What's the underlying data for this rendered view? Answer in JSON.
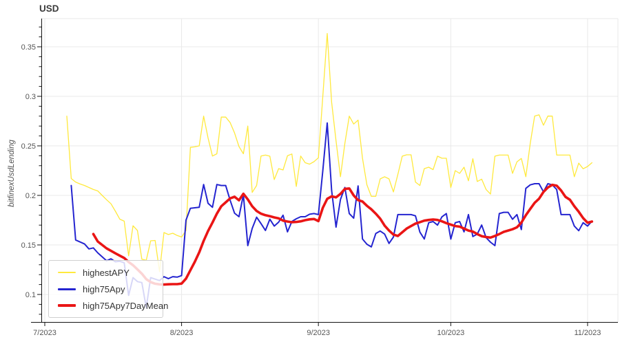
{
  "title": "USD",
  "legend": {
    "entries": [
      {
        "label": "highestAPY",
        "color": "#ffe93c"
      },
      {
        "label": "high75Apy",
        "color": "#2424d0"
      },
      {
        "label": "high75Apy7DayMean",
        "color": "#ea1515"
      }
    ]
  },
  "chart_data": {
    "type": "line",
    "title": "USD",
    "xlabel": "",
    "ylabel": "bitfinexUsdLending",
    "x_unit": "day",
    "x_start_date": "2023-07-06",
    "x_tick_labels": [
      "7/2023",
      "8/2023",
      "9/2023",
      "10/2023",
      "11/2023"
    ],
    "y_ticks": [
      0.1,
      0.15,
      0.2,
      0.25,
      0.3,
      0.35
    ],
    "y_tick_labels": [
      "0.1",
      "0.15",
      "0.2",
      "0.25",
      "0.3",
      "0.35"
    ],
    "ylim": [
      0.072,
      0.379
    ],
    "grid": true,
    "legend_position": "lower left",
    "series": [
      {
        "name": "highestAPY",
        "color": "#ffe93c",
        "width": 1.3,
        "values": [
          0.28,
          0.217,
          0.2135,
          0.2115,
          0.21,
          0.208,
          0.206,
          0.2045,
          0.2,
          0.1956,
          0.1915,
          0.184,
          0.176,
          0.174,
          0.139,
          0.1694,
          0.1646,
          0.1356,
          0.1345,
          0.1542,
          0.1545,
          0.123,
          0.1625,
          0.1605,
          0.1618,
          0.1595,
          0.158,
          0.1646,
          0.2485,
          0.249,
          0.25,
          0.28,
          0.258,
          0.2397,
          0.242,
          0.279,
          0.279,
          0.2735,
          0.263,
          0.2493,
          0.242,
          0.27,
          0.203,
          0.21,
          0.2397,
          0.2407,
          0.2396,
          0.216,
          0.227,
          0.2257,
          0.24,
          0.2418,
          0.209,
          0.2397,
          0.233,
          0.2315,
          0.234,
          0.238,
          0.3,
          0.3634,
          0.294,
          0.255,
          0.2188,
          0.2524,
          0.28,
          0.272,
          0.276,
          0.2375,
          0.2107,
          0.199,
          0.199,
          0.2167,
          0.2188,
          0.2167,
          0.2035,
          0.2211,
          0.2396,
          0.241,
          0.241,
          0.2135,
          0.21,
          0.227,
          0.2285,
          0.226,
          0.2396,
          0.2375,
          0.2375,
          0.208,
          0.225,
          0.2222,
          0.2285,
          0.2147,
          0.237,
          0.214,
          0.2164,
          0.206,
          0.2013,
          0.2396,
          0.2407,
          0.2407,
          0.2407,
          0.2222,
          0.2338,
          0.2373,
          0.2188,
          0.2524,
          0.2801,
          0.2813,
          0.2708,
          0.2801,
          0.28,
          0.2407,
          0.2407,
          0.2407,
          0.2407,
          0.2188,
          0.2326,
          0.2269,
          0.2292,
          0.233
        ]
      },
      {
        "name": "high75Apy",
        "color": "#2424d0",
        "width": 2,
        "values": [
          null,
          0.21,
          0.155,
          0.153,
          0.151,
          0.146,
          0.147,
          0.142,
          0.138,
          0.134,
          0.136,
          0.133,
          0.1335,
          0.132,
          0.099,
          0.117,
          0.113,
          0.112,
          0.0868,
          0.117,
          0.1155,
          0.114,
          0.118,
          0.116,
          0.118,
          0.1175,
          0.119,
          0.175,
          0.187,
          0.1875,
          0.188,
          0.211,
          0.192,
          0.188,
          0.211,
          0.21,
          0.21,
          0.195,
          0.182,
          0.1785,
          0.2007,
          0.1493,
          0.1667,
          0.178,
          0.1715,
          0.1646,
          0.176,
          0.169,
          0.173,
          0.18,
          0.1632,
          0.1737,
          0.1764,
          0.1785,
          0.1785,
          0.181,
          0.1817,
          0.1806,
          0.225,
          0.2731,
          0.205,
          0.168,
          0.1958,
          0.208,
          0.1817,
          0.177,
          0.2096,
          0.156,
          0.1507,
          0.148,
          0.1615,
          0.164,
          0.161,
          0.1515,
          0.158,
          0.1806,
          0.1806,
          0.1806,
          0.1806,
          0.1794,
          0.163,
          0.156,
          0.1724,
          0.1736,
          0.17,
          0.1783,
          0.1817,
          0.1559,
          0.1724,
          0.1736,
          0.1632,
          0.1806,
          0.1585,
          0.1609,
          0.1701,
          0.1574,
          0.1528,
          0.1493,
          0.1817,
          0.1829,
          0.1829,
          0.1759,
          0.1806,
          0.1655,
          0.2071,
          0.2106,
          0.2118,
          0.2118,
          0.2037,
          0.2118,
          0.2106,
          0.206,
          0.1806,
          0.1806,
          0.1806,
          0.169,
          0.1644,
          0.1724,
          0.169,
          0.174
        ]
      },
      {
        "name": "high75Apy7DayMean",
        "color": "#ea1515",
        "width": 3.6,
        "values": [
          null,
          null,
          null,
          null,
          null,
          null,
          0.161,
          0.1535,
          0.15,
          0.1465,
          0.144,
          0.1415,
          0.1392,
          0.1368,
          0.1328,
          0.1295,
          0.1253,
          0.121,
          0.1155,
          0.1125,
          0.1108,
          0.1102,
          0.11,
          0.1103,
          0.1104,
          0.1104,
          0.111,
          0.116,
          0.1245,
          0.133,
          0.1425,
          0.154,
          0.164,
          0.1725,
          0.1815,
          0.189,
          0.193,
          0.197,
          0.1986,
          0.1951,
          0.2017,
          0.196,
          0.189,
          0.1843,
          0.1815,
          0.18,
          0.179,
          0.1778,
          0.1768,
          0.1745,
          0.1736,
          0.1729,
          0.1732,
          0.1738,
          0.175,
          0.1758,
          0.1762,
          0.174,
          0.1875,
          0.1965,
          0.199,
          0.198,
          0.2015,
          0.2065,
          0.207,
          0.2,
          0.1952,
          0.1938,
          0.1895,
          0.186,
          0.1815,
          0.1765,
          0.1695,
          0.1645,
          0.1605,
          0.159,
          0.1628,
          0.1665,
          0.169,
          0.1715,
          0.173,
          0.1745,
          0.1752,
          0.1757,
          0.1752,
          0.1738,
          0.172,
          0.1705,
          0.169,
          0.1685,
          0.1665,
          0.1645,
          0.1635,
          0.161,
          0.1588,
          0.158,
          0.1574,
          0.159,
          0.161,
          0.1632,
          0.1645,
          0.1658,
          0.1678,
          0.1725,
          0.18,
          0.1863,
          0.1925,
          0.1967,
          0.2035,
          0.208,
          0.2106,
          0.2098,
          0.2049,
          0.1985,
          0.1956,
          0.189,
          0.1835,
          0.1771,
          0.1724,
          0.1736
        ]
      }
    ]
  }
}
